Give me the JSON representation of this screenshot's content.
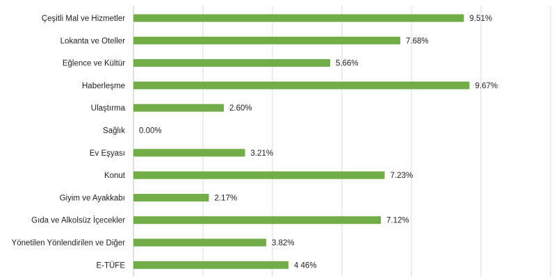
{
  "chart_data": {
    "type": "bar",
    "orientation": "horizontal",
    "title": "",
    "xlabel": "",
    "ylabel": "",
    "xlim": [
      0,
      12
    ],
    "grid": true,
    "legend": "none",
    "bar_color": "#70ad47",
    "categories": [
      "Çeşitli Mal ve Hizmetler",
      "Lokanta ve Oteller",
      "Eğlence ve Kültür",
      "Haberleşme",
      "Ulaştırma",
      "Sağlık",
      "Ev Eşyası",
      "Konut",
      "Giyim ve Ayakkabı",
      "Gıda ve Alkolsüz İçecekler",
      "Yönetilen Yönlendirilen ve Diğer",
      "E-TÜFE"
    ],
    "values": [
      9.51,
      7.68,
      5.66,
      9.67,
      2.6,
      0.0,
      3.21,
      7.23,
      2.17,
      7.12,
      3.82,
      4.46
    ],
    "data_labels": [
      "9.51%",
      "7.68%",
      "5.66%",
      "9.67%",
      "2.60%",
      "0.00%",
      "3.21%",
      "7.23%",
      "2.17%",
      "7.12%",
      "3.82%",
      "4 46%"
    ]
  }
}
